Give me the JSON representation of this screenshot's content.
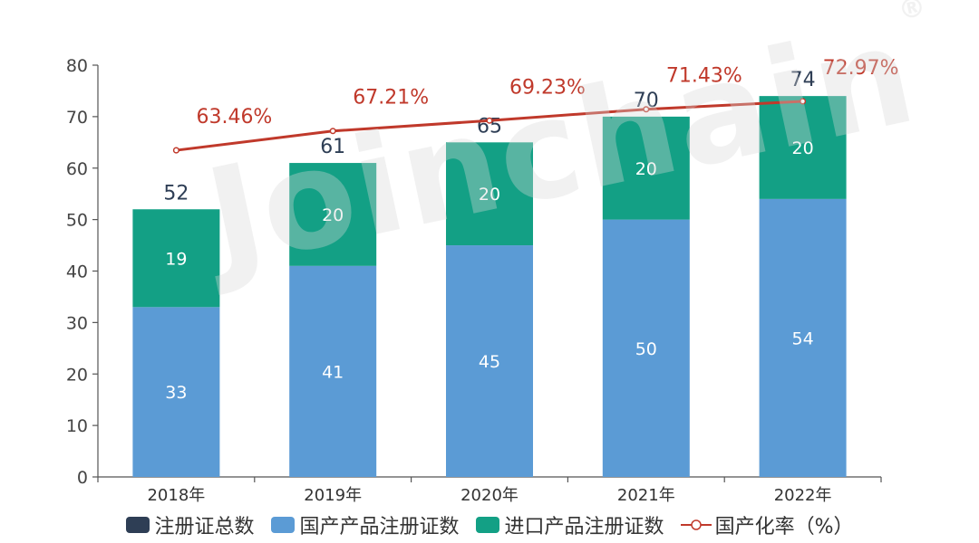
{
  "chart_data": {
    "type": "bar",
    "categories": [
      "2018年",
      "2019年",
      "2020年",
      "2021年",
      "2022年"
    ],
    "series": [
      {
        "name": "注册证总数",
        "values": [
          52,
          61,
          65,
          70,
          74
        ],
        "color": "#2e3e55"
      },
      {
        "name": "国产产品注册证数",
        "values": [
          33,
          41,
          45,
          50,
          54
        ],
        "color": "#5b9bd5"
      },
      {
        "name": "进口产品注册证数",
        "values": [
          19,
          20,
          20,
          20,
          20
        ],
        "color": "#13a085"
      },
      {
        "name": "国产化率（%）",
        "values": [
          63.46,
          67.21,
          69.23,
          71.43,
          72.97
        ],
        "labels": [
          "63.46%",
          "67.21%",
          "69.23%",
          "71.43%",
          "72.97%"
        ],
        "color": "#c0392b",
        "type": "line"
      }
    ],
    "ylim": [
      0,
      80
    ],
    "yticks": [
      0,
      10,
      20,
      30,
      40,
      50,
      60,
      70,
      80
    ],
    "grid": false,
    "legend_position": "bottom"
  },
  "watermark": {
    "text": "Joinchain",
    "mark": "®"
  }
}
